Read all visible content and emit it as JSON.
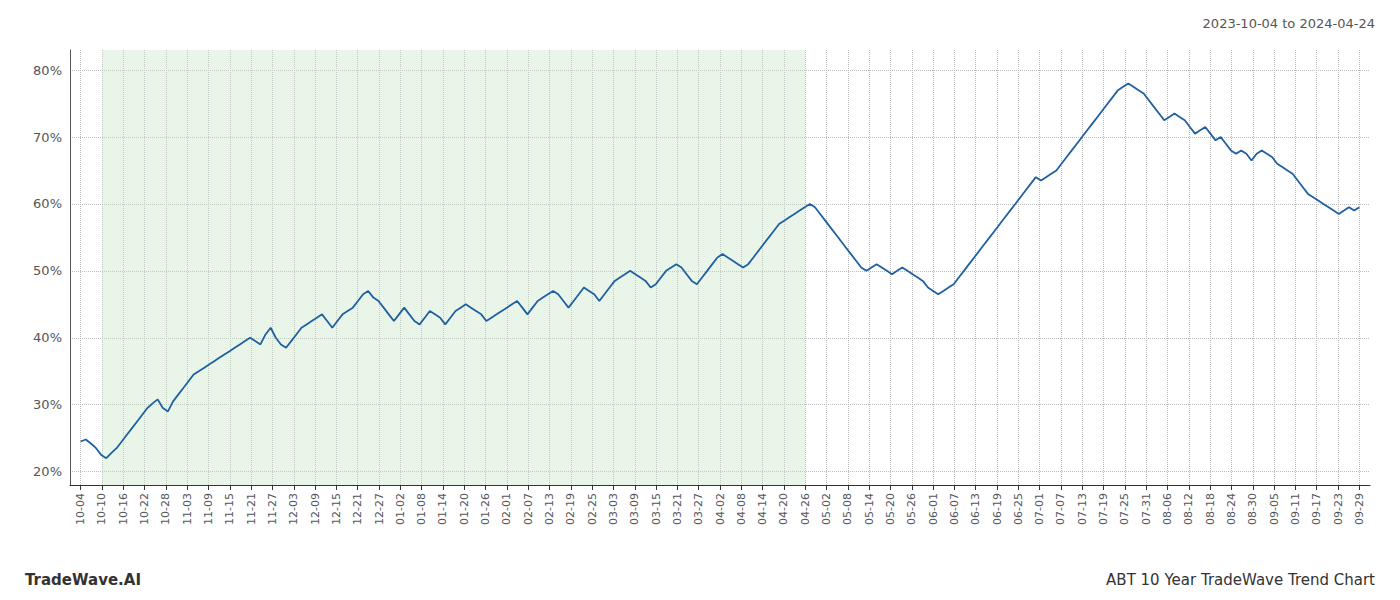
{
  "chart_data": {
    "type": "line",
    "title": "ABT 10 Year TradeWave Trend Chart",
    "subtitle": "2023-10-04 to 2024-04-24",
    "annotations": [
      "TradeWave.AI"
    ],
    "color": "#2060a0",
    "grid": true,
    "xlim": [
      -0.5,
      60.5
    ],
    "xticks": [
      {
        "value": 0,
        "label": "10-04"
      },
      {
        "value": 1,
        "label": "10-10"
      },
      {
        "value": 2,
        "label": "10-16"
      },
      {
        "value": 3,
        "label": "10-22"
      },
      {
        "value": 4,
        "label": "10-28"
      },
      {
        "value": 5,
        "label": "11-03"
      },
      {
        "value": 6,
        "label": "11-09"
      },
      {
        "value": 7,
        "label": "11-15"
      },
      {
        "value": 8,
        "label": "11-21"
      },
      {
        "value": 9,
        "label": "11-27"
      },
      {
        "value": 10,
        "label": "12-03"
      },
      {
        "value": 11,
        "label": "12-09"
      },
      {
        "value": 12,
        "label": "12-15"
      },
      {
        "value": 13,
        "label": "12-21"
      },
      {
        "value": 14,
        "label": "12-27"
      },
      {
        "value": 15,
        "label": "01-02"
      },
      {
        "value": 16,
        "label": "01-08"
      },
      {
        "value": 17,
        "label": "01-14"
      },
      {
        "value": 18,
        "label": "01-20"
      },
      {
        "value": 19,
        "label": "01-26"
      },
      {
        "value": 20,
        "label": "02-01"
      },
      {
        "value": 21,
        "label": "02-07"
      },
      {
        "value": 22,
        "label": "02-13"
      },
      {
        "value": 23,
        "label": "02-19"
      },
      {
        "value": 24,
        "label": "02-25"
      },
      {
        "value": 25,
        "label": "03-03"
      },
      {
        "value": 26,
        "label": "03-09"
      },
      {
        "value": 27,
        "label": "03-15"
      },
      {
        "value": 28,
        "label": "03-21"
      },
      {
        "value": 29,
        "label": "03-27"
      },
      {
        "value": 30,
        "label": "04-02"
      },
      {
        "value": 31,
        "label": "04-08"
      },
      {
        "value": 32,
        "label": "04-14"
      },
      {
        "value": 33,
        "label": "04-20"
      },
      {
        "value": 34,
        "label": "04-26"
      },
      {
        "value": 35,
        "label": "05-02"
      },
      {
        "value": 36,
        "label": "05-08"
      },
      {
        "value": 37,
        "label": "05-14"
      },
      {
        "value": 38,
        "label": "05-20"
      },
      {
        "value": 39,
        "label": "05-26"
      },
      {
        "value": 40,
        "label": "06-01"
      },
      {
        "value": 41,
        "label": "06-07"
      },
      {
        "value": 42,
        "label": "06-13"
      },
      {
        "value": 43,
        "label": "06-19"
      },
      {
        "value": 44,
        "label": "06-25"
      },
      {
        "value": 45,
        "label": "07-01"
      },
      {
        "value": 46,
        "label": "07-07"
      },
      {
        "value": 47,
        "label": "07-13"
      },
      {
        "value": 48,
        "label": "07-19"
      },
      {
        "value": 49,
        "label": "07-25"
      },
      {
        "value": 50,
        "label": "07-31"
      },
      {
        "value": 51,
        "label": "08-06"
      },
      {
        "value": 52,
        "label": "08-12"
      },
      {
        "value": 53,
        "label": "08-18"
      },
      {
        "value": 54,
        "label": "08-24"
      },
      {
        "value": 55,
        "label": "08-30"
      },
      {
        "value": 56,
        "label": "09-05"
      },
      {
        "value": 57,
        "label": "09-11"
      },
      {
        "value": 58,
        "label": "09-17"
      },
      {
        "value": 59,
        "label": "09-23"
      },
      {
        "value": 60,
        "label": "09-29"
      }
    ],
    "ylim": [
      18,
      83
    ],
    "yticks": [
      {
        "value": 20,
        "label": "20%"
      },
      {
        "value": 30,
        "label": "30%"
      },
      {
        "value": 40,
        "label": "40%"
      },
      {
        "value": 50,
        "label": "50%"
      },
      {
        "value": 60,
        "label": "60%"
      },
      {
        "value": 70,
        "label": "70%"
      },
      {
        "value": 80,
        "label": "80%"
      }
    ],
    "shade": {
      "x": [
        "10-10",
        "04-26"
      ],
      "color": "#c8e6c9"
    },
    "values": [
      24.5,
      24.8,
      24.2,
      23.5,
      22.5,
      22.0,
      22.8,
      23.5,
      24.5,
      25.5,
      26.5,
      27.5,
      28.5,
      29.5,
      30.2,
      30.8,
      29.5,
      29.0,
      30.5,
      31.5,
      32.5,
      33.5,
      34.5,
      35.0,
      35.5,
      36.0,
      36.5,
      37.0,
      37.5,
      38.0,
      38.5,
      39.0,
      39.5,
      40.0,
      39.5,
      39.0,
      40.5,
      41.5,
      40.0,
      39.0,
      38.5,
      39.5,
      40.5,
      41.5,
      42.0,
      42.5,
      43.0,
      43.5,
      42.5,
      41.5,
      42.5,
      43.5,
      44.0,
      44.5,
      45.5,
      46.5,
      47.0,
      46.0,
      45.5,
      44.5,
      43.5,
      42.5,
      43.5,
      44.5,
      43.5,
      42.5,
      42.0,
      43.0,
      44.0,
      43.5,
      43.0,
      42.0,
      43.0,
      44.0,
      44.5,
      45.0,
      44.5,
      44.0,
      43.5,
      42.5,
      43.0,
      43.5,
      44.0,
      44.5,
      45.0,
      45.5,
      44.5,
      43.5,
      44.5,
      45.5,
      46.0,
      46.5,
      47.0,
      46.5,
      45.5,
      44.5,
      45.5,
      46.5,
      47.5,
      47.0,
      46.5,
      45.5,
      46.5,
      47.5,
      48.5,
      49.0,
      49.5,
      50.0,
      49.5,
      49.0,
      48.5,
      47.5,
      48.0,
      49.0,
      50.0,
      50.5,
      51.0,
      50.5,
      49.5,
      48.5,
      48.0,
      49.0,
      50.0,
      51.0,
      52.0,
      52.5,
      52.0,
      51.5,
      51.0,
      50.5,
      51.0,
      52.0,
      53.0,
      54.0,
      55.0,
      56.0,
      57.0,
      57.5,
      58.0,
      58.5,
      59.0,
      59.5,
      60.0,
      59.5,
      58.5,
      57.5,
      56.5,
      55.5,
      54.5,
      53.5,
      52.5,
      51.5,
      50.5,
      50.0,
      50.5,
      51.0,
      50.5,
      50.0,
      49.5,
      50.0,
      50.5,
      50.0,
      49.5,
      49.0,
      48.5,
      47.5,
      47.0,
      46.5,
      47.0,
      47.5,
      48.0,
      49.0,
      50.0,
      51.0,
      52.0,
      53.0,
      54.0,
      55.0,
      56.0,
      57.0,
      58.0,
      59.0,
      60.0,
      61.0,
      62.0,
      63.0,
      64.0,
      63.5,
      64.0,
      64.5,
      65.0,
      66.0,
      67.0,
      68.0,
      69.0,
      70.0,
      71.0,
      72.0,
      73.0,
      74.0,
      75.0,
      76.0,
      77.0,
      77.5,
      78.0,
      77.5,
      77.0,
      76.5,
      75.5,
      74.5,
      73.5,
      72.5,
      73.0,
      73.5,
      73.0,
      72.5,
      71.5,
      70.5,
      71.0,
      71.5,
      70.5,
      69.5,
      70.0,
      69.0,
      68.0,
      67.5,
      68.0,
      67.5,
      66.5,
      67.5,
      68.0,
      67.5,
      67.0,
      66.0,
      65.5,
      65.0,
      64.5,
      63.5,
      62.5,
      61.5,
      61.0,
      60.5,
      60.0,
      59.5,
      59.0,
      58.5,
      59.0,
      59.5,
      59.0,
      59.5
    ]
  }
}
